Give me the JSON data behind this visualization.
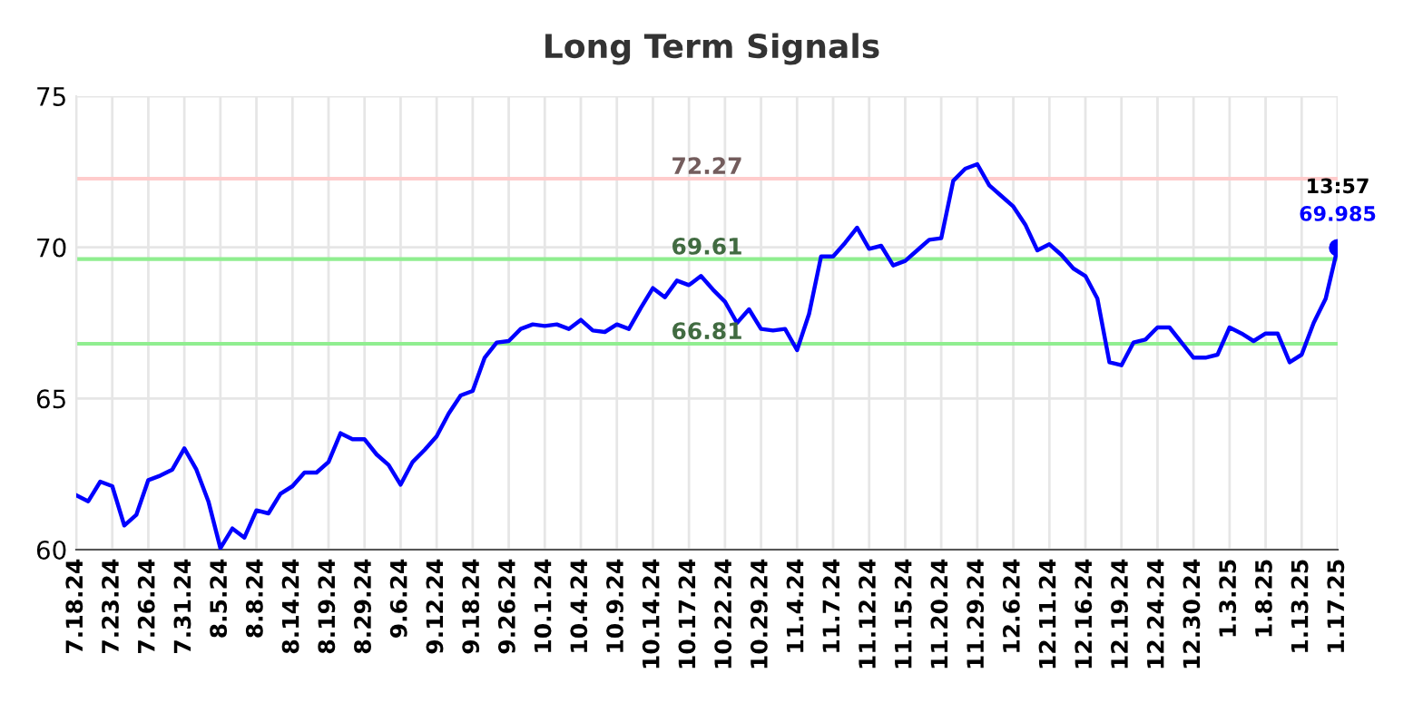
{
  "chart_data": {
    "type": "line",
    "title": "Long Term Signals",
    "categories": [
      "7.18.24",
      null,
      null,
      "7.23.24",
      null,
      null,
      "7.26.24",
      null,
      null,
      "7.31.24",
      null,
      null,
      "8.5.24",
      null,
      null,
      "8.8.24",
      null,
      null,
      "8.14.24",
      null,
      null,
      "8.19.24",
      null,
      null,
      "8.29.24",
      null,
      null,
      "9.6.24",
      null,
      null,
      "9.12.24",
      null,
      null,
      "9.18.24",
      null,
      null,
      "9.26.24",
      null,
      null,
      "10.1.24",
      null,
      null,
      "10.4.24",
      null,
      null,
      "10.9.24",
      null,
      null,
      "10.14.24",
      null,
      null,
      "10.17.24",
      null,
      null,
      "10.22.24",
      null,
      null,
      "10.29.24",
      null,
      null,
      "11.4.24",
      null,
      null,
      "11.7.24",
      null,
      null,
      "11.12.24",
      null,
      null,
      "11.15.24",
      null,
      null,
      "11.20.24",
      null,
      null,
      "11.29.24",
      null,
      null,
      "12.6.24",
      null,
      null,
      "12.11.24",
      null,
      null,
      "12.16.24",
      null,
      null,
      "12.19.24",
      null,
      null,
      "12.24.24",
      null,
      null,
      "12.30.24",
      null,
      null,
      "1.3.25",
      null,
      null,
      "1.8.25",
      null,
      null,
      "1.13.25",
      null,
      null,
      "1.17.25"
    ],
    "series": [
      {
        "color": "#0000ff",
        "values": [
          61.8,
          61.6,
          62.25,
          62.1,
          60.8,
          61.15,
          62.3,
          62.45,
          62.65,
          63.35,
          62.65,
          61.6,
          60.05,
          60.7,
          60.4,
          61.3,
          61.2,
          61.85,
          62.1,
          62.55,
          62.55,
          62.9,
          63.85,
          63.65,
          63.65,
          63.15,
          62.8,
          62.15,
          62.9,
          63.3,
          63.75,
          64.5,
          65.1,
          65.25,
          66.35,
          66.85,
          66.9,
          67.3,
          67.45,
          67.4,
          67.45,
          67.3,
          67.6,
          67.25,
          67.2,
          67.45,
          67.3,
          68.0,
          68.65,
          68.35,
          68.9,
          68.75,
          69.05,
          68.6,
          68.2,
          67.5,
          67.95,
          67.3,
          67.25,
          67.3,
          66.6,
          67.8,
          69.7,
          69.7,
          70.15,
          70.65,
          69.95,
          70.05,
          69.4,
          69.55,
          69.9,
          70.25,
          70.3,
          72.2,
          72.6,
          72.75,
          72.05,
          71.7,
          71.35,
          70.75,
          69.9,
          70.1,
          69.75,
          69.3,
          69.05,
          68.3,
          66.2,
          66.1,
          66.85,
          66.95,
          67.35,
          67.35,
          66.85,
          66.35,
          66.35,
          66.45,
          67.35,
          67.15,
          66.9,
          67.15,
          67.15,
          66.2,
          66.45,
          67.5,
          68.3,
          69.985
        ],
        "value_labels": [
          null,
          null,
          null,
          null,
          null,
          null,
          null,
          null,
          null,
          null,
          null,
          null,
          null,
          null,
          null,
          null,
          null,
          null,
          null,
          null,
          null,
          null,
          null,
          null,
          null,
          null,
          null,
          null,
          null,
          null,
          null,
          null,
          null,
          null,
          null,
          null,
          null,
          null,
          null,
          null,
          null,
          null,
          null,
          null,
          null,
          null,
          null,
          null,
          null,
          null,
          null,
          null,
          null,
          null,
          null,
          null,
          null,
          null,
          null,
          null,
          null,
          null,
          null,
          null,
          null,
          null,
          null,
          null,
          null,
          null,
          null,
          null,
          null,
          null,
          null,
          null,
          null,
          null,
          null,
          null,
          null,
          null,
          null,
          null,
          null,
          null,
          null,
          null,
          null,
          null,
          null,
          null,
          null,
          null,
          null,
          null,
          null,
          null,
          null,
          null,
          null,
          null,
          null,
          null,
          null,
          "69.985"
        ]
      }
    ],
    "ylim": [
      60,
      75
    ],
    "yticks": [
      60,
      65,
      70,
      75
    ],
    "grid": true,
    "ref_lines": [
      {
        "axis": "y",
        "value": 72.27,
        "label": "72.27",
        "color": "#ffcccc"
      },
      {
        "axis": "y",
        "value": 69.61,
        "label": "69.61",
        "color": "#90ee90"
      },
      {
        "axis": "y",
        "value": 66.81,
        "label": "66.81",
        "color": "#90ee90"
      }
    ],
    "annotations": [
      {
        "text": "13:57",
        "x": "1.17.25",
        "y": 69.985
      }
    ]
  }
}
